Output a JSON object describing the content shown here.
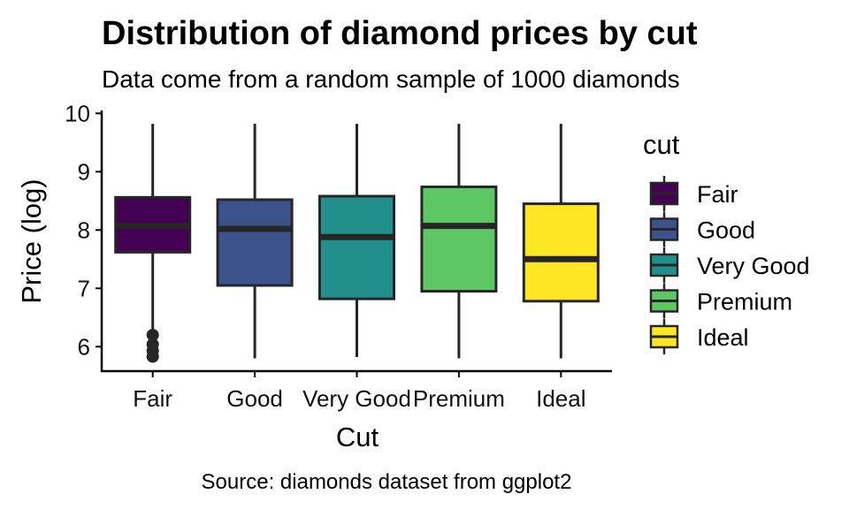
{
  "chart_data": {
    "type": "boxplot",
    "title": "Distribution of diamond prices by cut",
    "subtitle": "Data come from a random sample of 1000 diamonds",
    "caption": "Source: diamonds dataset from ggplot2",
    "xlabel": "Cut",
    "ylabel": "Price (log)",
    "ylim": [
      5.58,
      10.05
    ],
    "yticks": [
      "6",
      "7",
      "8",
      "9",
      "10"
    ],
    "legend": {
      "title": "cut",
      "position": "right"
    },
    "categories": [
      "Fair",
      "Good",
      "Very Good",
      "Premium",
      "Ideal"
    ],
    "colors": [
      "#440154",
      "#3B528B",
      "#21908C",
      "#5DC863",
      "#FDE725"
    ],
    "outline_color": "#262626",
    "series": [
      {
        "name": "Fair",
        "min": 5.83,
        "q1": 7.62,
        "median": 8.07,
        "q3": 8.56,
        "max": 9.82,
        "outliers": [
          6.2,
          6.04,
          5.93,
          5.83
        ]
      },
      {
        "name": "Good",
        "min": 5.8,
        "q1": 7.05,
        "median": 8.02,
        "q3": 8.52,
        "max": 9.82,
        "outliers": []
      },
      {
        "name": "Very Good",
        "min": 5.82,
        "q1": 6.82,
        "median": 7.88,
        "q3": 8.58,
        "max": 9.82,
        "outliers": []
      },
      {
        "name": "Premium",
        "min": 5.8,
        "q1": 6.95,
        "median": 8.07,
        "q3": 8.74,
        "max": 9.82,
        "outliers": []
      },
      {
        "name": "Ideal",
        "min": 5.8,
        "q1": 6.78,
        "median": 7.5,
        "q3": 8.45,
        "max": 9.82,
        "outliers": []
      }
    ]
  }
}
